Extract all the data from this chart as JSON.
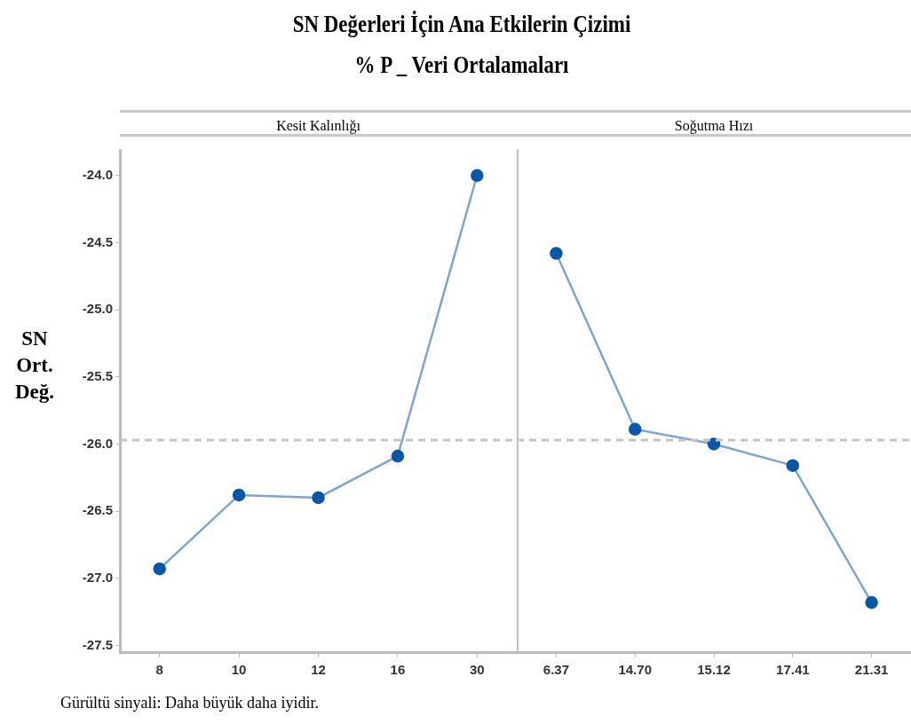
{
  "chart_data": [
    {
      "type": "line",
      "title": "SN Değerleri İçin Ana Etkilerin Çizimi",
      "subtitle": "% P _ Veri Ortalamaları",
      "xlabel": "Kesit Kalınlığı",
      "ylabel": "SN Ort. Değ.",
      "annotations": [
        "Gürültü sinyali: Daha büyük daha iyidir."
      ],
      "categories": [
        "8",
        "10",
        "12",
        "16",
        "30"
      ],
      "series": [
        {
          "color": "#0a56a8",
          "values": [
            -26.93,
            -26.38,
            -26.4,
            -26.09,
            -24.0
          ]
        }
      ],
      "ylim": [
        -27.55,
        -23.81
      ],
      "yticks": [
        {
          "value": -24,
          "label": "-24.0"
        },
        -24.5,
        {
          "value": -25,
          "label": "-25.0"
        },
        -25.5,
        {
          "value": -26,
          "label": "-26.0"
        },
        -26.5,
        {
          "value": -27,
          "label": "-27.0"
        },
        -27.5
      ],
      "ref_lines": [
        {
          "axis": "y",
          "value": -25.97,
          "color": "#c4c4c4",
          "line_style": "dashed"
        }
      ],
      "marker": "circle",
      "line_style": "solid"
    },
    {
      "type": "line",
      "xlabel": "Soğutma Hızı",
      "categories": [
        "6.37",
        "14.70",
        "15.12",
        "17.41",
        "21.31"
      ],
      "series": [
        {
          "color": "#0a56a8",
          "values": [
            -24.58,
            -25.89,
            -26.0,
            -26.16,
            -27.18
          ]
        }
      ],
      "ylim": [
        -27.55,
        -23.81
      ],
      "yticks": [
        -24,
        -24.5,
        -25,
        -25.5,
        -26,
        -26.5,
        -27,
        -27.5
      ],
      "ref_lines": [
        {
          "axis": "y",
          "value": -25.97,
          "color": "#c4c4c4",
          "line_style": "dashed"
        }
      ],
      "marker": "circle",
      "line_style": "solid",
      "tick_labels": "x"
    }
  ]
}
